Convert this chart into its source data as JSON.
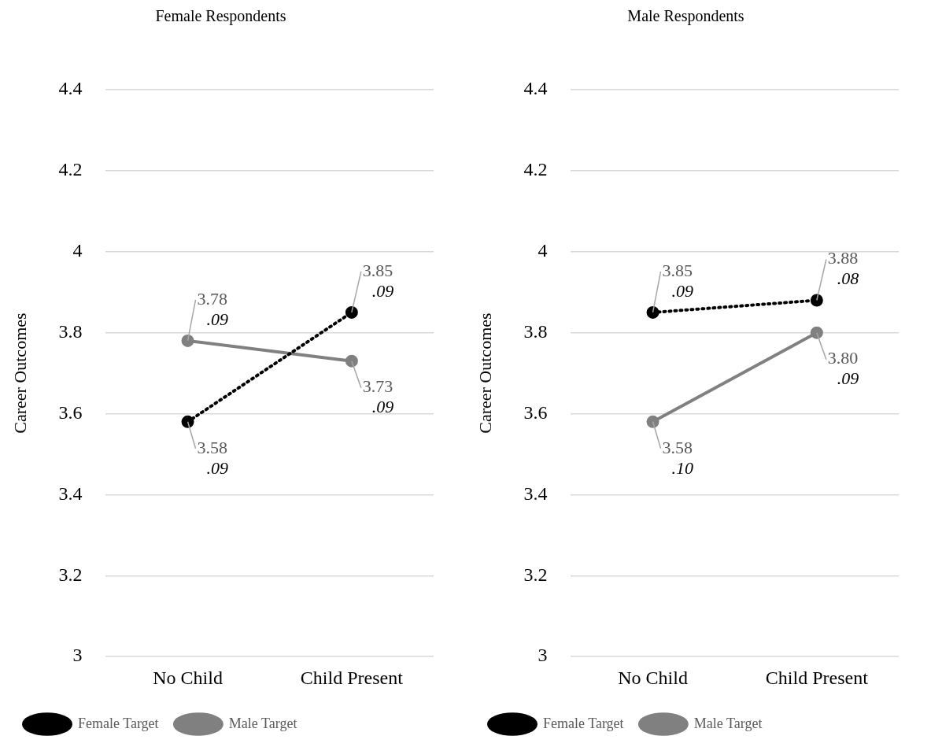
{
  "chart_data": [
    {
      "type": "line",
      "title": "Female Respondents",
      "ylabel": "Career Outcomes",
      "categories": [
        "No Child",
        "Child Present"
      ],
      "ylim": [
        3,
        4.4
      ],
      "yticks": [
        3,
        3.2,
        3.4,
        3.6,
        3.8,
        4,
        4.2,
        4.4
      ],
      "grid": "y",
      "legend": "bottom",
      "series": [
        {
          "name": "Female Target",
          "color": "#000000",
          "values": [
            3.58,
            3.85
          ],
          "value_labels": [
            "3.58",
            "3.85"
          ],
          "line_style": "dotted",
          "marker": "circle"
        },
        {
          "name": "Male Target",
          "color": "#808080",
          "values": [
            3.78,
            3.73
          ],
          "value_labels": [
            "3.78",
            "3.73"
          ],
          "line_style": "solid",
          "marker": "circle"
        }
      ],
      "annotations": [
        {
          "text": ".09",
          "x": "No Child",
          "y": 3.58
        },
        {
          "text": ".09",
          "x": "Child Present",
          "y": 3.85
        },
        {
          "text": ".09",
          "x": "No Child",
          "y": 3.78
        },
        {
          "text": ".09",
          "x": "Child Present",
          "y": 3.73
        }
      ]
    },
    {
      "type": "line",
      "title": "Male Respondents",
      "ylabel": "Career Outcomes",
      "categories": [
        "No Child",
        "Child Present"
      ],
      "ylim": [
        3,
        4.4
      ],
      "yticks": [
        3,
        3.2,
        3.4,
        3.6,
        3.8,
        4,
        4.2,
        4.4
      ],
      "grid": "y",
      "legend": "bottom",
      "series": [
        {
          "name": "Female Target",
          "color": "#000000",
          "values": [
            3.85,
            3.88
          ],
          "value_labels": [
            "3.85",
            "3.88"
          ],
          "line_style": "dotted",
          "marker": "circle"
        },
        {
          "name": "Male Target",
          "color": "#808080",
          "values": [
            3.58,
            3.8
          ],
          "value_labels": [
            "3.58",
            "3.80"
          ],
          "line_style": "solid",
          "marker": "circle"
        }
      ],
      "annotations": [
        {
          "text": ".09",
          "x": "No Child",
          "y": 3.85
        },
        {
          "text": ".08",
          "x": "Child Present",
          "y": 3.88
        },
        {
          "text": ".10",
          "x": "No Child",
          "y": 3.58
        },
        {
          "text": ".09",
          "x": "Child Present",
          "y": 3.8
        }
      ]
    }
  ]
}
